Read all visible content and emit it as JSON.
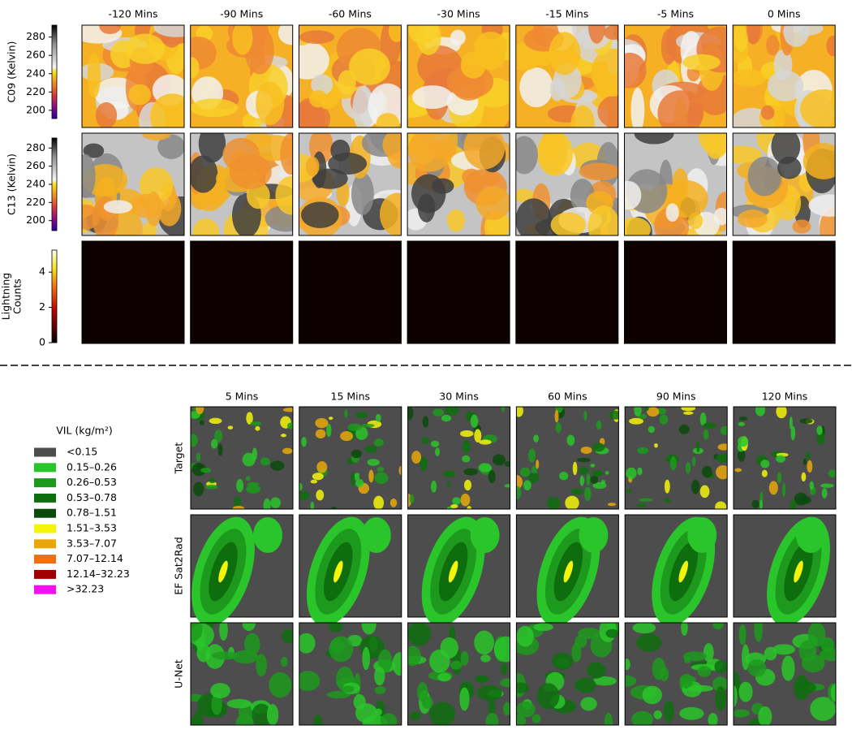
{
  "top": {
    "columns": [
      "-120 Mins",
      "-90 Mins",
      "-60 Mins",
      "-30 Mins",
      "-15 Mins",
      "-5 Mins",
      "0 Mins"
    ],
    "rows": [
      {
        "label_lines": [
          "C09 (Kelvin)"
        ],
        "ylim": [
          191,
          293
        ],
        "yticks": [
          200,
          220,
          240,
          260,
          280
        ]
      },
      {
        "label_lines": [
          "C13 (Kelvin)"
        ],
        "ylim": [
          189,
          291
        ],
        "yticks": [
          200,
          220,
          240,
          260,
          280
        ]
      },
      {
        "label_lines": [
          "Lightning",
          "Counts"
        ],
        "ylim": [
          0,
          5.25
        ],
        "yticks": [
          0,
          2,
          4
        ]
      }
    ]
  },
  "bottom": {
    "columns": [
      "5 Mins",
      "15 Mins",
      "30 Mins",
      "60 Mins",
      "90 Mins",
      "120 Mins"
    ],
    "rows": [
      "Target",
      "EF Sat2Rad",
      "U-Net"
    ]
  },
  "legend": {
    "title": "VIL (kg/m²)",
    "items": [
      {
        "label": "<0.15",
        "color": "#4d4d4d"
      },
      {
        "label": "0.15–0.26",
        "color": "#2ac52a"
      },
      {
        "label": "0.26–0.53",
        "color": "#1d9a1d"
      },
      {
        "label": "0.53–0.78",
        "color": "#0e6e0e"
      },
      {
        "label": "0.78–1.51",
        "color": "#0a4a0a"
      },
      {
        "label": "1.51–3.53",
        "color": "#f5f50a"
      },
      {
        "label": "3.53–7.07",
        "color": "#e8a80a"
      },
      {
        "label": "7.07–12.14",
        "color": "#f07010"
      },
      {
        "label": "12.14–32.23",
        "color": "#a00000"
      },
      {
        "label": ">32.23",
        "color": "#f010f0"
      }
    ]
  }
}
